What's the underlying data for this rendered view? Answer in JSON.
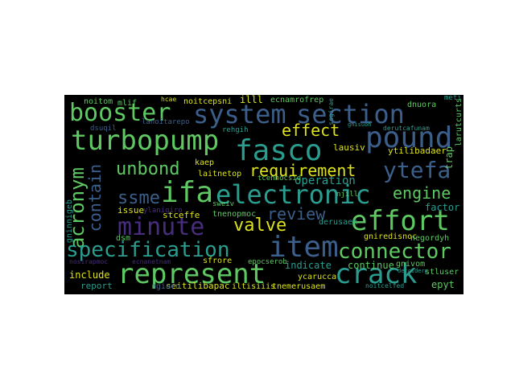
{
  "palette": {
    "background": "#000000",
    "teal": "#2a9d8f",
    "green": "#5ec962",
    "yellow": "#dde318",
    "blue": "#3b5f8a",
    "purple": "#472d7b"
  },
  "words": {
    "w1": "booster",
    "w2": "system",
    "w3": "section",
    "w4": "turbopump",
    "w5": "fasco",
    "w6": "pound",
    "w7": "effect",
    "w8": "requirement",
    "w9": "ytefa",
    "w10": "unbond",
    "w11": "contain",
    "w12": "acronym",
    "w13": "ifa",
    "w14": "electronic",
    "w15": "engine",
    "w16": "ssme",
    "w17": "review",
    "w18": "minute",
    "w19": "valve",
    "w20": "effort",
    "w21": "item",
    "w22": "specification",
    "w23": "connector",
    "w24": "represent",
    "w25": "crack",
    "w26": "include",
    "w27": "report",
    "w28": "indicate",
    "w29": "continue",
    "w30": "operation",
    "w31": "factor",
    "w32": "issue",
    "w33": "stceffe",
    "w34": "tnenopmoc",
    "w35": "laitnetop",
    "w36": "kaep",
    "w37": "lausiv",
    "w38": "ytilibadaer",
    "w39": "noitom",
    "w40": "mlif",
    "w41": "noitcepsni",
    "w42": "illl",
    "w43": "ecnamrofrep",
    "w44": "dnuora",
    "w45": "gniredisnoc",
    "w46": "gnivom",
    "w47": "negordyh",
    "w48": "ycarucca",
    "w49": "stluser",
    "w50": "epyt",
    "w51": "seitilibapac",
    "w52": "tnemerusaem",
    "w53": "sfrore",
    "w54": "epocserob",
    "w55": "derusaem",
    "w56": "tcennocsid",
    "w57": "ylanigiro",
    "w58": "sweiv",
    "w59": "larutcurts",
    "w60": "trap",
    "w61": "gninnigeb",
    "w62": "dsm",
    "w63": "nosirapmoc",
    "w64": "ecnanetnam",
    "w65": "derutcafunam",
    "w66": "gnisuoh",
    "w67": "dsuqil",
    "w68": "lanoitarepo",
    "w69": "rehgih",
    "w70": "hcae",
    "w71": "ssgirae",
    "w72": "dnuora",
    "w73": "meti",
    "w74": "njill",
    "w75": "noitcelfed",
    "w76": "detciderp",
    "w77": "ngiarn",
    "w78": "iltisiiis"
  }
}
